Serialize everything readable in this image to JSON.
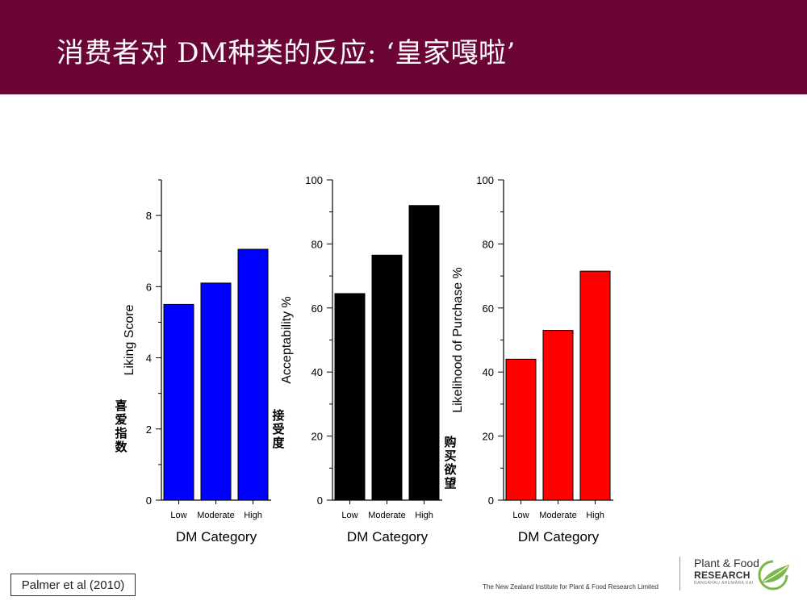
{
  "header": {
    "title": "消费者对 DM种类的反应: ‘皇家嘎啦’"
  },
  "colors": {
    "header_bg": "#6a0535",
    "series": [
      "#0000ff",
      "#000000",
      "#ff0000"
    ]
  },
  "chart_data": [
    {
      "type": "bar",
      "categories": [
        "Low",
        "Moderate",
        "High"
      ],
      "values": [
        5.5,
        6.1,
        7.05
      ],
      "xlabel": "DM Category",
      "ylabel": "Liking Score",
      "ylabel_cn": "喜爱指数",
      "ylim": [
        0,
        9
      ],
      "yticks": [
        0,
        2,
        4,
        6,
        8
      ],
      "color": "#0000ff"
    },
    {
      "type": "bar",
      "categories": [
        "Low",
        "Moderate",
        "High"
      ],
      "values": [
        64.5,
        76.5,
        92
      ],
      "xlabel": "DM Category",
      "ylabel": "Acceptability %",
      "ylabel_cn": "接受度",
      "ylim": [
        0,
        100
      ],
      "yticks": [
        0,
        20,
        40,
        60,
        80,
        100
      ],
      "color": "#000000"
    },
    {
      "type": "bar",
      "categories": [
        "Low",
        "Moderate",
        "High"
      ],
      "values": [
        44,
        53,
        71.5
      ],
      "xlabel": "DM Category",
      "ylabel": "Likelihood of Purchase %",
      "ylabel_cn": "购买欲望",
      "ylim": [
        0,
        100
      ],
      "yticks": [
        0,
        20,
        40,
        60,
        80,
        100
      ],
      "color": "#ff0000"
    }
  ],
  "footer": {
    "citation": "Palmer et al (2010)",
    "organization": "The New Zealand Institute for Plant & Food Research Limited",
    "logo_line1": "Plant & Food",
    "logo_line2": "RESEARCH",
    "logo_line3": "RANGAHAU AHUMĀRA KAI"
  }
}
